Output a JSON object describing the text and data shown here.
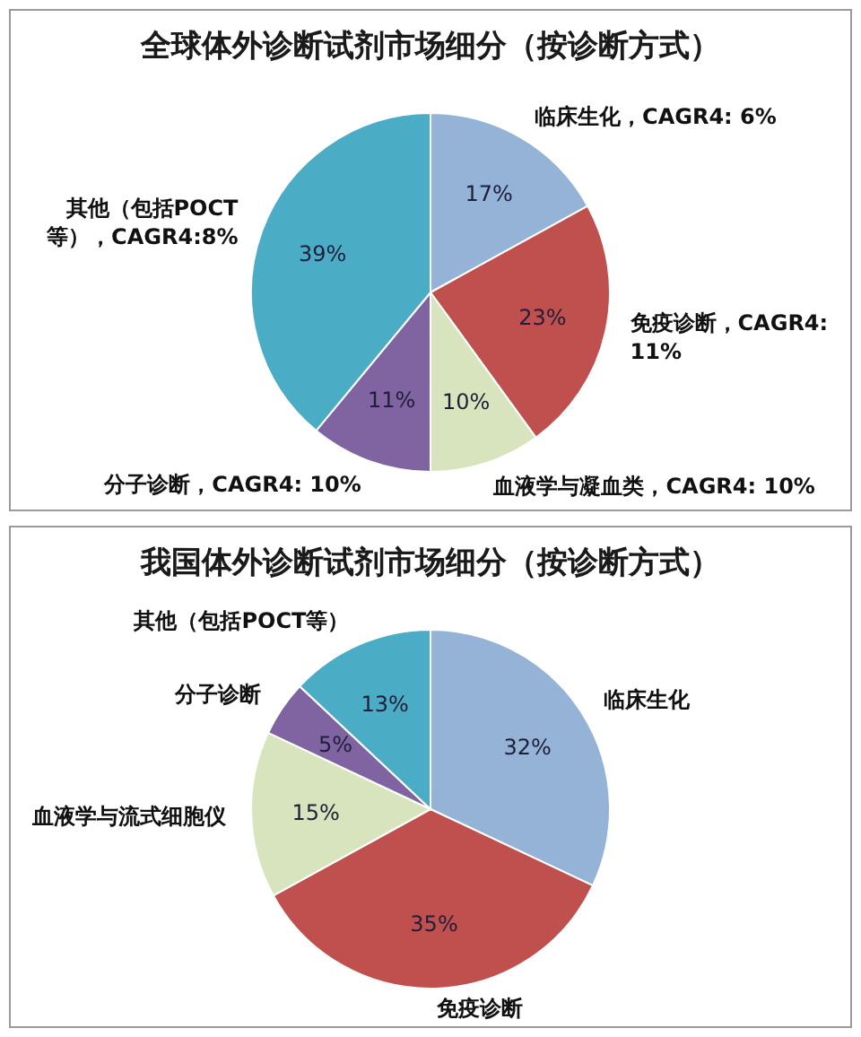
{
  "chart_data": [
    {
      "type": "pie",
      "title": "全球体外诊断试剂市场细分（按诊断方式）",
      "categories": [
        "临床生化，CAGR4: 6%",
        "免疫诊断，CAGR4: 11%",
        "血液学与凝血类，CAGR4: 10%",
        "分子诊断，CAGR4: 10%",
        "其他（包括POCT等），CAGR4:8%"
      ],
      "values": [
        17,
        23,
        10,
        11,
        39
      ],
      "value_labels": [
        "17%",
        "23%",
        "10%",
        "11%",
        "39%"
      ],
      "colors": [
        "#95b3d7",
        "#c0504d",
        "#d7e4bd",
        "#8064a2",
        "#4bacc6"
      ]
    },
    {
      "type": "pie",
      "title": "我国体外诊断试剂市场细分（按诊断方式）",
      "categories": [
        "临床生化",
        "免疫诊断",
        "血液学与流式细胞仪",
        "分子诊断",
        "其他（包括POCT等）"
      ],
      "values": [
        32,
        35,
        15,
        5,
        13
      ],
      "value_labels": [
        "32%",
        "35%",
        "15%",
        "5%",
        "13%"
      ],
      "colors": [
        "#95b3d7",
        "#c0504d",
        "#d7e4bd",
        "#8064a2",
        "#4bacc6"
      ]
    }
  ]
}
